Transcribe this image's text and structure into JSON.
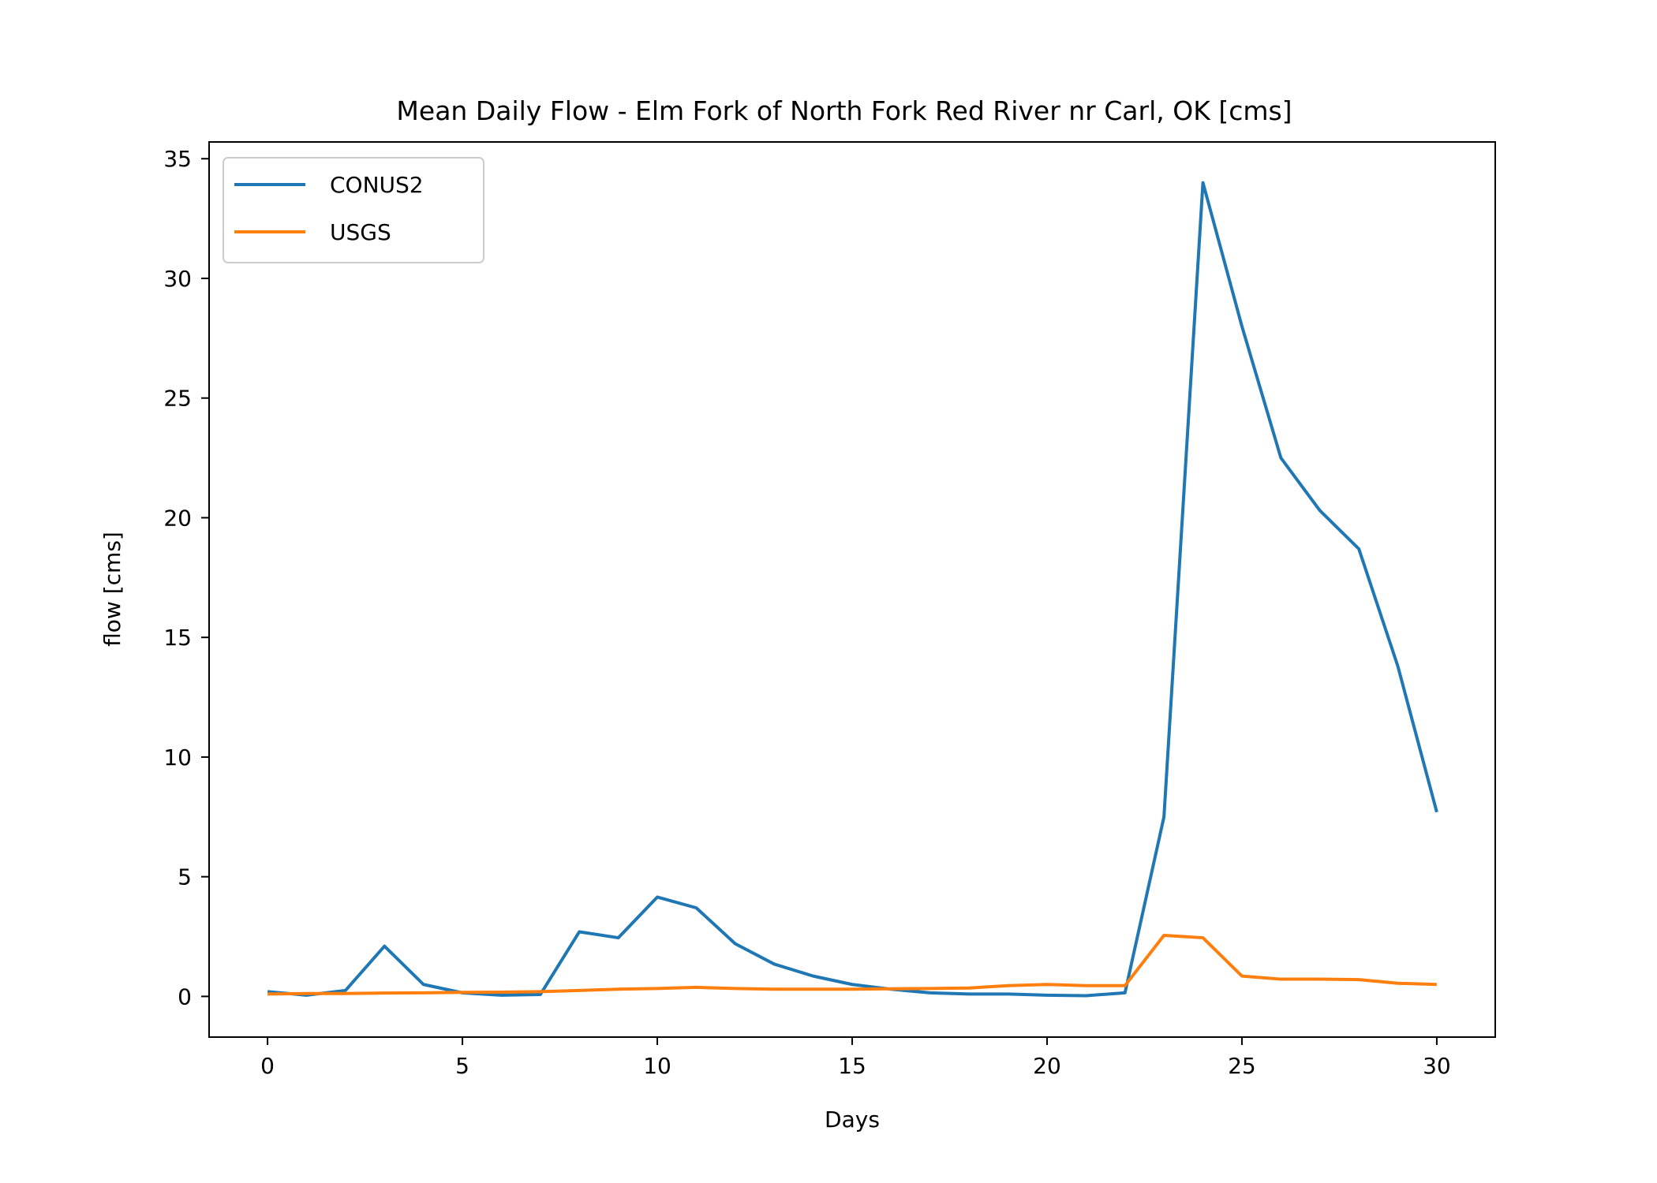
{
  "chart_data": {
    "type": "line",
    "title": "Mean Daily Flow - Elm Fork of North Fork Red River nr Carl, OK [cms]",
    "xlabel": "Days",
    "ylabel": "flow [cms]",
    "xlim": [
      -1.5,
      31.5
    ],
    "ylim": [
      -1.7,
      35.7
    ],
    "xticks": [
      0,
      5,
      10,
      15,
      20,
      25,
      30
    ],
    "yticks": [
      0,
      5,
      10,
      15,
      20,
      25,
      30,
      35
    ],
    "grid": false,
    "legend_position": "upper-left",
    "x": [
      0,
      1,
      2,
      3,
      4,
      5,
      6,
      7,
      8,
      9,
      10,
      11,
      12,
      13,
      14,
      15,
      16,
      17,
      18,
      19,
      20,
      21,
      22,
      23,
      24,
      25,
      26,
      27,
      28,
      29,
      30
    ],
    "series": [
      {
        "name": "CONUS2",
        "color": "#1f77b4",
        "values": [
          0.2,
          0.05,
          0.25,
          2.1,
          0.5,
          0.15,
          0.05,
          0.08,
          2.7,
          2.45,
          4.15,
          3.7,
          2.2,
          1.35,
          0.85,
          0.5,
          0.3,
          0.15,
          0.1,
          0.1,
          0.05,
          0.03,
          0.15,
          7.5,
          34.0,
          28.0,
          22.5,
          20.3,
          18.7,
          13.8,
          7.7
        ]
      },
      {
        "name": "USGS",
        "color": "#ff7f0e",
        "values": [
          0.1,
          0.12,
          0.12,
          0.14,
          0.15,
          0.17,
          0.18,
          0.2,
          0.25,
          0.3,
          0.33,
          0.38,
          0.33,
          0.3,
          0.3,
          0.3,
          0.32,
          0.33,
          0.35,
          0.45,
          0.5,
          0.45,
          0.45,
          2.55,
          2.45,
          0.85,
          0.72,
          0.72,
          0.7,
          0.55,
          0.5
        ]
      }
    ]
  }
}
